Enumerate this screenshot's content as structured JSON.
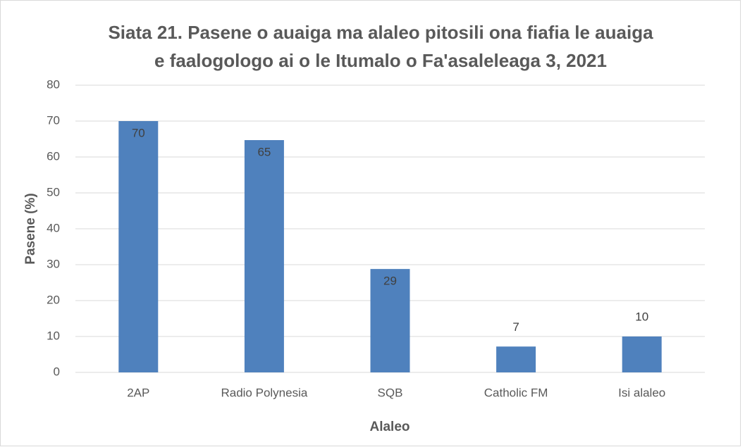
{
  "chart_data": {
    "type": "bar",
    "title": [
      "Siata 21. Pasene o auaiga ma alaleo pitosili ona fiafia le auaiga",
      "e faalogologo ai o le Itumalo o Fa'asaleleaga 3, 2021"
    ],
    "x_label": "Alaleo",
    "y_label": "Pasene (%)",
    "categories": [
      "2AP",
      "Radio Polynesia",
      "SQB",
      "Catholic FM",
      "Isi alaleo"
    ],
    "values": [
      70,
      64.7,
      28.8,
      7.2,
      10
    ],
    "value_labels": [
      "70",
      "65",
      "29",
      "7",
      "10"
    ],
    "color": "#4f81bd",
    "ylim": [
      0,
      80
    ],
    "yticks": [
      0,
      10,
      20,
      30,
      40,
      50,
      60,
      70,
      80
    ],
    "grid": true
  }
}
